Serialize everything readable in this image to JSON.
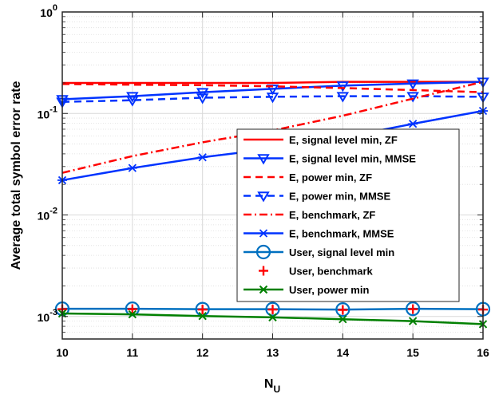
{
  "chart_data": {
    "type": "line",
    "title": "",
    "xlabel": "N",
    "xlabel_subscript": "U",
    "ylabel": "Average total symbol error rate",
    "x": [
      10,
      11,
      12,
      13,
      14,
      15,
      16
    ],
    "xlim": [
      10,
      16
    ],
    "ylim": [
      0.0006,
      1
    ],
    "yscale": "log",
    "grid": true,
    "minor_grid": true,
    "x_ticks": [
      "10",
      "11",
      "12",
      "13",
      "14",
      "15",
      "16"
    ],
    "y_ticks": [
      {
        "value": 1,
        "base": "10",
        "exp": "0"
      },
      {
        "value": 0.1,
        "base": "10",
        "exp": "-1"
      },
      {
        "value": 0.01,
        "base": "10",
        "exp": "-2"
      },
      {
        "value": 0.001,
        "base": "10",
        "exp": "-3"
      }
    ],
    "legend_position": "center-right",
    "series": [
      {
        "name": "E, signal level min, ZF",
        "color": "#ff0000",
        "dash": "solid",
        "marker": "none",
        "values": [
          0.2,
          0.2,
          0.2,
          0.2,
          0.205,
          0.205,
          0.205
        ]
      },
      {
        "name": "E, signal level min, MMSE",
        "color": "#0033ff",
        "dash": "solid",
        "marker": "triangle-down",
        "values": [
          0.138,
          0.148,
          0.162,
          0.175,
          0.188,
          0.197,
          0.205
        ]
      },
      {
        "name": "E, power min, ZF",
        "color": "#ff0000",
        "dash": "dashed",
        "marker": "none",
        "values": [
          0.195,
          0.192,
          0.19,
          0.185,
          0.178,
          0.17,
          0.162
        ]
      },
      {
        "name": "E, power min, MMSE",
        "color": "#0033ff",
        "dash": "dashed",
        "marker": "triangle-down",
        "values": [
          0.13,
          0.135,
          0.143,
          0.146,
          0.148,
          0.148,
          0.146
        ]
      },
      {
        "name": "E, benchmark, ZF",
        "color": "#ff0000",
        "dash": "dashdot",
        "marker": "none",
        "values": [
          0.026,
          0.038,
          0.052,
          0.068,
          0.095,
          0.14,
          0.205
        ]
      },
      {
        "name": "E, benchmark, MMSE",
        "color": "#0033ff",
        "dash": "solid",
        "marker": "asterisk",
        "values": [
          0.022,
          0.029,
          0.037,
          0.045,
          0.058,
          0.079,
          0.106
        ]
      },
      {
        "name": "User, signal level min",
        "color": "#0070c0",
        "dash": "solid",
        "marker": "circle",
        "values": [
          0.00119,
          0.00119,
          0.00118,
          0.00118,
          0.00117,
          0.00119,
          0.00118
        ]
      },
      {
        "name": "User, benchmark",
        "color": "#ff0000",
        "dash": "none",
        "marker": "plus",
        "values": [
          0.00118,
          0.00118,
          0.00117,
          0.00117,
          0.00116,
          0.00118,
          0.00117
        ]
      },
      {
        "name": "User, power min",
        "color": "#008000",
        "dash": "solid",
        "marker": "x",
        "values": [
          0.00107,
          0.00105,
          0.00101,
          0.00098,
          0.00094,
          0.0009,
          0.00084
        ]
      }
    ]
  }
}
